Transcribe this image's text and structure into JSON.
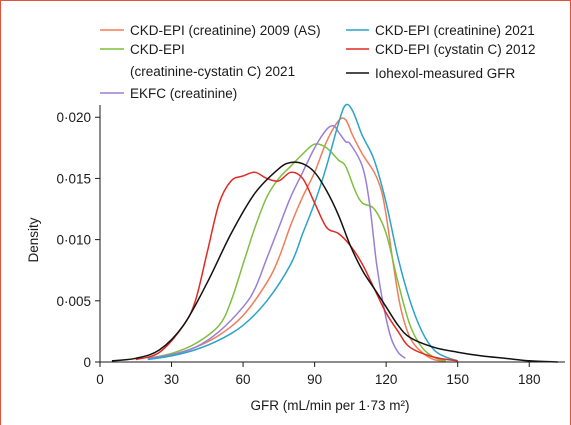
{
  "chart_data": {
    "type": "line",
    "title": "",
    "xlabel": "GFR (mL/min per 1·73 m²)",
    "ylabel": "Density",
    "xlim": [
      0,
      195
    ],
    "ylim": [
      0,
      0.021
    ],
    "x_ticks": [
      {
        "value": 0,
        "label": "0"
      },
      {
        "value": 30,
        "label": "30"
      },
      {
        "value": 60,
        "label": "60"
      },
      {
        "value": 90,
        "label": "90"
      },
      {
        "value": 120,
        "label": "120"
      },
      {
        "value": 150,
        "label": "150"
      },
      {
        "value": 180,
        "label": "180"
      }
    ],
    "y_ticks": [
      {
        "value": 0,
        "label": "0"
      },
      {
        "value": 0.005,
        "label": "0·005"
      },
      {
        "value": 0.01,
        "label": "0·010"
      },
      {
        "value": 0.015,
        "label": "0·015"
      },
      {
        "value": 0.02,
        "label": "0·020"
      }
    ],
    "grid": false,
    "legend": "top",
    "series": [
      {
        "name": "CKD-EPI (creatinine) 2009 (AS)",
        "color": "#f07d5a",
        "points": [
          [
            20,
            0.0003
          ],
          [
            30,
            0.0006
          ],
          [
            40,
            0.0012
          ],
          [
            50,
            0.0022
          ],
          [
            60,
            0.0038
          ],
          [
            70,
            0.0065
          ],
          [
            75,
            0.0085
          ],
          [
            80,
            0.0112
          ],
          [
            85,
            0.0135
          ],
          [
            90,
            0.0155
          ],
          [
            95,
            0.018
          ],
          [
            100,
            0.0197
          ],
          [
            103,
            0.0198
          ],
          [
            106,
            0.0185
          ],
          [
            110,
            0.017
          ],
          [
            115,
            0.0155
          ],
          [
            118,
            0.014
          ],
          [
            120,
            0.012
          ],
          [
            123,
            0.008
          ],
          [
            126,
            0.0045
          ],
          [
            130,
            0.002
          ],
          [
            135,
            0.0008
          ],
          [
            140,
            0.0002
          ],
          [
            145,
            0.0001
          ]
        ]
      },
      {
        "name": "CKD-EPI (creatinine-cystatin C) 2021",
        "color": "#7fbf3f",
        "points": [
          [
            20,
            0.0003
          ],
          [
            30,
            0.0007
          ],
          [
            40,
            0.0015
          ],
          [
            50,
            0.003
          ],
          [
            55,
            0.005
          ],
          [
            60,
            0.008
          ],
          [
            65,
            0.011
          ],
          [
            70,
            0.0135
          ],
          [
            75,
            0.015
          ],
          [
            80,
            0.016
          ],
          [
            85,
            0.017
          ],
          [
            90,
            0.0178
          ],
          [
            95,
            0.0175
          ],
          [
            100,
            0.0165
          ],
          [
            103,
            0.016
          ],
          [
            107,
            0.014
          ],
          [
            110,
            0.013
          ],
          [
            115,
            0.0125
          ],
          [
            120,
            0.0105
          ],
          [
            125,
            0.0065
          ],
          [
            130,
            0.003
          ],
          [
            135,
            0.0012
          ],
          [
            140,
            0.0004
          ],
          [
            145,
            0.0001
          ]
        ]
      },
      {
        "name": "EKFC (creatinine)",
        "color": "#9a7ed6",
        "points": [
          [
            20,
            0.0003
          ],
          [
            30,
            0.0006
          ],
          [
            40,
            0.0012
          ],
          [
            50,
            0.0025
          ],
          [
            60,
            0.0045
          ],
          [
            65,
            0.006
          ],
          [
            70,
            0.0085
          ],
          [
            75,
            0.011
          ],
          [
            80,
            0.0135
          ],
          [
            85,
            0.0155
          ],
          [
            90,
            0.0175
          ],
          [
            95,
            0.019
          ],
          [
            98,
            0.0193
          ],
          [
            100,
            0.0188
          ],
          [
            103,
            0.018
          ],
          [
            105,
            0.0178
          ],
          [
            110,
            0.016
          ],
          [
            113,
            0.013
          ],
          [
            116,
            0.008
          ],
          [
            119,
            0.0045
          ],
          [
            122,
            0.002
          ],
          [
            125,
            0.0008
          ],
          [
            128,
            0.0003
          ]
        ]
      },
      {
        "name": "CKD-EPI (creatinine) 2021",
        "color": "#2ba3c8",
        "points": [
          [
            20,
            0.0002
          ],
          [
            30,
            0.0005
          ],
          [
            40,
            0.001
          ],
          [
            50,
            0.0018
          ],
          [
            60,
            0.003
          ],
          [
            70,
            0.005
          ],
          [
            80,
            0.008
          ],
          [
            85,
            0.0105
          ],
          [
            90,
            0.013
          ],
          [
            95,
            0.016
          ],
          [
            100,
            0.0195
          ],
          [
            103,
            0.021
          ],
          [
            106,
            0.0205
          ],
          [
            110,
            0.0185
          ],
          [
            115,
            0.0165
          ],
          [
            120,
            0.013
          ],
          [
            125,
            0.0085
          ],
          [
            130,
            0.005
          ],
          [
            135,
            0.0025
          ],
          [
            140,
            0.001
          ],
          [
            145,
            0.0004
          ],
          [
            150,
            0.0001
          ]
        ]
      },
      {
        "name": "CKD-EPI (cystatin C) 2012",
        "color": "#e02a22",
        "points": [
          [
            15,
            0.0002
          ],
          [
            25,
            0.0008
          ],
          [
            35,
            0.003
          ],
          [
            40,
            0.005
          ],
          [
            45,
            0.009
          ],
          [
            50,
            0.013
          ],
          [
            55,
            0.0148
          ],
          [
            60,
            0.0152
          ],
          [
            65,
            0.0155
          ],
          [
            70,
            0.015
          ],
          [
            75,
            0.0148
          ],
          [
            80,
            0.0155
          ],
          [
            85,
            0.015
          ],
          [
            90,
            0.013
          ],
          [
            95,
            0.011
          ],
          [
            100,
            0.0105
          ],
          [
            105,
            0.0095
          ],
          [
            110,
            0.008
          ],
          [
            115,
            0.006
          ],
          [
            120,
            0.004
          ],
          [
            125,
            0.0025
          ],
          [
            130,
            0.0012
          ],
          [
            140,
            0.0004
          ],
          [
            150,
            0.0001
          ]
        ]
      },
      {
        "name": "Iohexol-measured GFR",
        "color": "#111111",
        "points": [
          [
            5,
            0.0001
          ],
          [
            15,
            0.0003
          ],
          [
            25,
            0.001
          ],
          [
            35,
            0.003
          ],
          [
            45,
            0.0065
          ],
          [
            55,
            0.0105
          ],
          [
            65,
            0.0138
          ],
          [
            75,
            0.0158
          ],
          [
            80,
            0.0163
          ],
          [
            85,
            0.0162
          ],
          [
            90,
            0.0155
          ],
          [
            95,
            0.014
          ],
          [
            100,
            0.012
          ],
          [
            105,
            0.0095
          ],
          [
            110,
            0.0075
          ],
          [
            115,
            0.006
          ],
          [
            120,
            0.0045
          ],
          [
            125,
            0.003
          ],
          [
            130,
            0.002
          ],
          [
            140,
            0.0012
          ],
          [
            150,
            0.0008
          ],
          [
            160,
            0.0005
          ],
          [
            170,
            0.0003
          ],
          [
            180,
            0.0001
          ],
          [
            192,
            0.0
          ]
        ]
      }
    ]
  }
}
